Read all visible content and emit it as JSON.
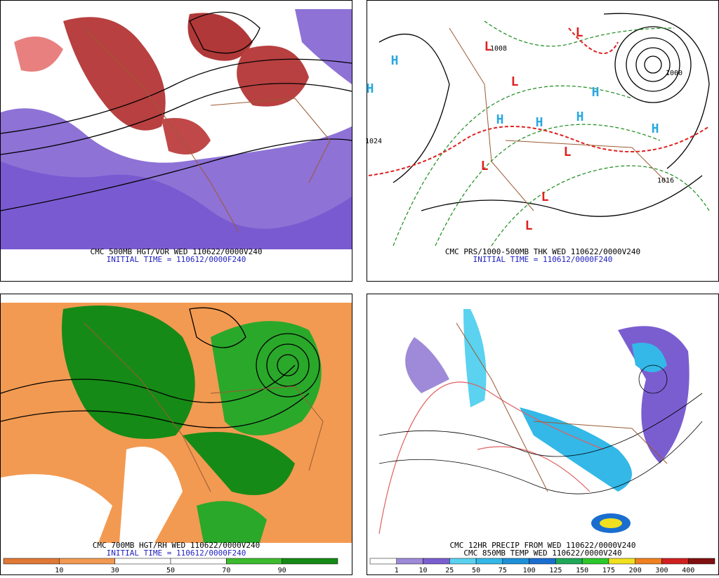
{
  "panels": [
    {
      "caption_lines": [
        "CMC 500MB HGT/VOR WED 110622/0000V240",
        "INITIAL TIME = 110612/0000F240"
      ]
    },
    {
      "caption_lines": [
        "CMC PRS/1000-500MB THK WED 110622/0000V240",
        "INITIAL TIME = 110612/0000F240"
      ],
      "pressure_centers": [
        "H",
        "H",
        "H",
        "H",
        "H",
        "H",
        "H",
        "L",
        "L",
        "L",
        "L",
        "L",
        "L",
        "L"
      ],
      "isobar_labels": [
        "1016",
        "1008",
        "1024",
        "1000"
      ]
    },
    {
      "caption_lines": [
        "CMC 700MB HGT/RH WED 110622/0000V240",
        "INITIAL TIME = 110612/0000F240"
      ]
    },
    {
      "caption_lines": [
        "CMC 12HR PRECIP FROM WED 110622/0000V240",
        "CMC 850MB TEMP WED 110622/0000V240"
      ]
    }
  ],
  "rh_colorbar": {
    "colors": [
      "#e07836",
      "#f29a52",
      "#ffffff",
      "#ffffff",
      "#3dbb2e",
      "#168a16"
    ],
    "labels": [
      "10",
      "30",
      "50",
      "70",
      "90"
    ]
  },
  "precip_colorbar": {
    "colors": [
      "#ffffff",
      "#9e8ad8",
      "#7a5ed0",
      "#5ad2f0",
      "#33b8e8",
      "#1e90d8",
      "#1a6ed0",
      "#1fa858",
      "#2cc82c",
      "#f0e020",
      "#f08020",
      "#d02020",
      "#801010"
    ],
    "labels": [
      "1",
      "10",
      "25",
      "50",
      "75",
      "100",
      "125",
      "150",
      "175",
      "200",
      "300",
      "400"
    ]
  }
}
